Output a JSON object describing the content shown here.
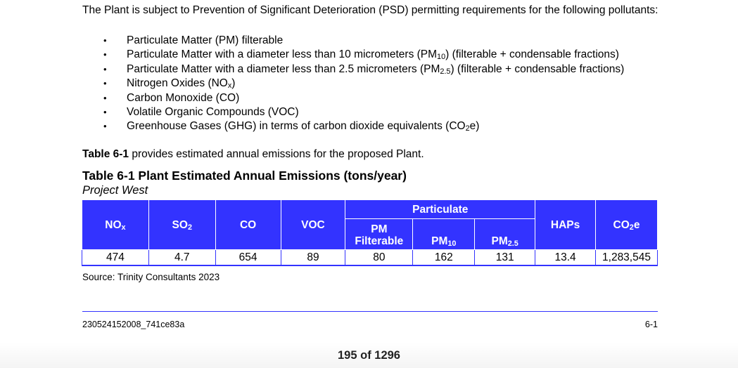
{
  "intro": "The Plant is subject to Prevention of Significant Deterioration (PSD) permitting requirements for the following pollutants:",
  "pollutants": [
    {
      "pre": "Particulate Matter (PM) filterable",
      "sub": "",
      "post": ""
    },
    {
      "pre": "Particulate Matter with a diameter less than 10 micrometers (PM",
      "sub": "10",
      "post": ") (filterable + condensable fractions)"
    },
    {
      "pre": "Particulate Matter with a diameter less than 2.5 micrometers (PM",
      "sub": "2.5",
      "post": ") (filterable + condensable fractions)"
    },
    {
      "pre": "Nitrogen Oxides (NO",
      "sub": "x",
      "post": ")"
    },
    {
      "pre": "Carbon Monoxide (CO)",
      "sub": "",
      "post": ""
    },
    {
      "pre": "Volatile Organic Compounds (VOC)",
      "sub": "",
      "post": ""
    },
    {
      "pre": "Greenhouse Gases (GHG) in terms of carbon dioxide equivalents (CO",
      "sub": "2",
      "post": "e)"
    }
  ],
  "bullet_glyph": "•",
  "ref_bold": "Table 6-1",
  "ref_rest": " provides estimated annual emissions for the proposed Plant.",
  "table_title": "Table 6-1 Plant Estimated Annual Emissions (tons/year)",
  "table_subtitle": "Project West",
  "table": {
    "group_header": "Particulate",
    "columns": [
      {
        "pre": "NO",
        "sub": "x",
        "post": ""
      },
      {
        "pre": "SO",
        "sub": "2",
        "post": ""
      },
      {
        "pre": "CO",
        "sub": "",
        "post": ""
      },
      {
        "pre": "VOC",
        "sub": "",
        "post": ""
      },
      {
        "pre": "PM Filterable",
        "sub": "",
        "post": ""
      },
      {
        "pre": "PM",
        "sub": "10",
        "post": ""
      },
      {
        "pre": "PM",
        "sub": "2.5",
        "post": ""
      },
      {
        "pre": "HAPs",
        "sub": "",
        "post": ""
      },
      {
        "pre": "CO",
        "sub": "2",
        "post": "e"
      }
    ],
    "values": [
      "474",
      "4.7",
      "654",
      "89",
      "80",
      "162",
      "131",
      "13.4",
      "1,283,545"
    ]
  },
  "source": "Source: Trinity Consultants 2023",
  "footer": {
    "doc_id": "230524152008_741ce83a",
    "page": "6-1"
  },
  "counter": "195 of 1296",
  "colors": {
    "table_header": "#3333ff",
    "rule": "#3333ff"
  }
}
